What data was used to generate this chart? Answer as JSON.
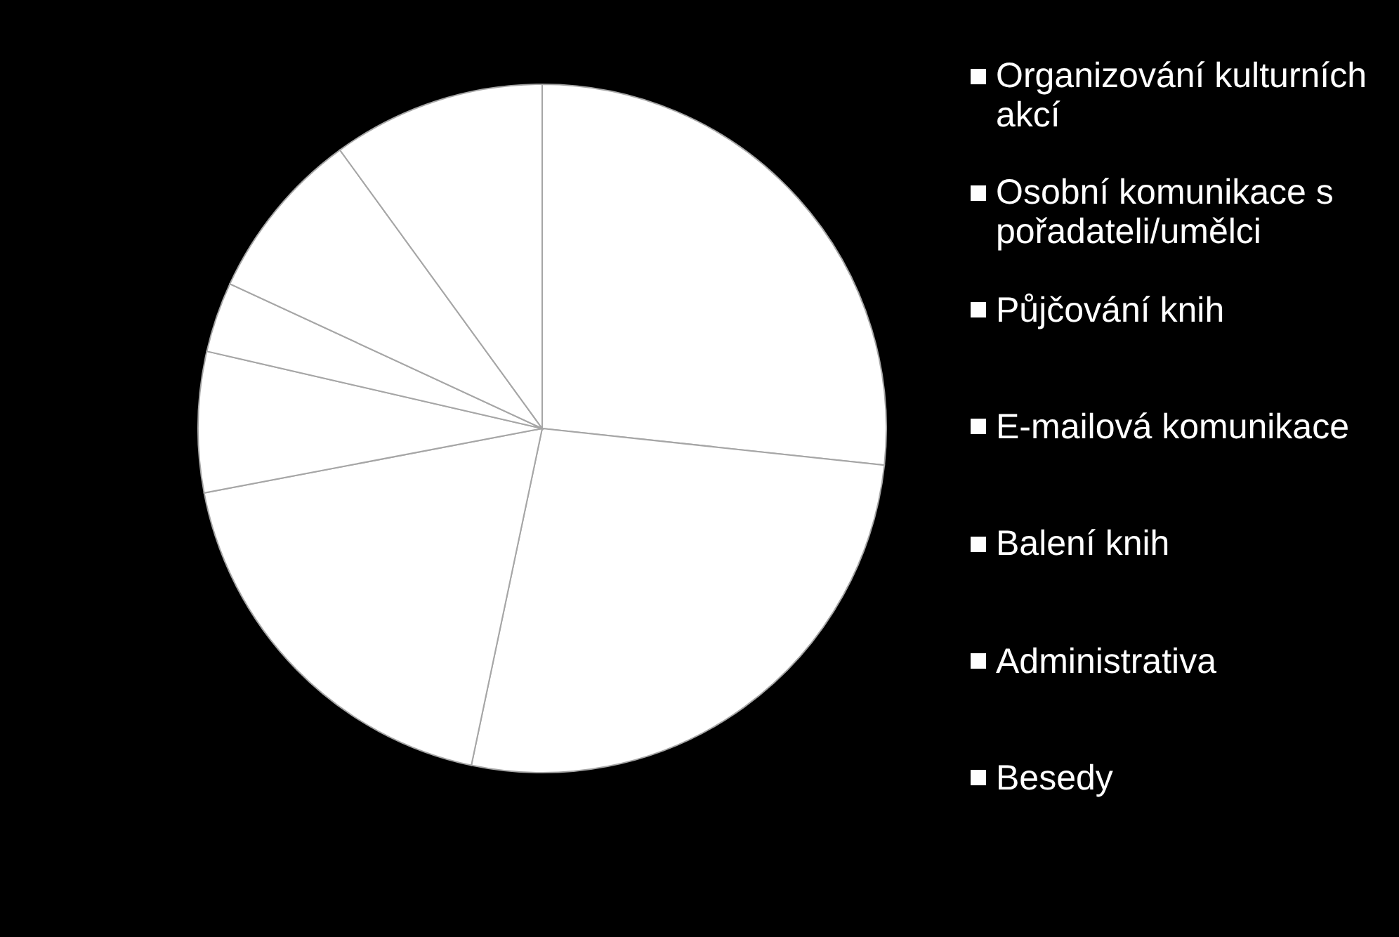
{
  "chart_data": {
    "type": "pie",
    "categories": [
      "Organizování kulturních akcí",
      "Osobní komunikace s pořadateli/umělci",
      "Půjčování knih",
      "E-mailová komunikace",
      "Balení knih",
      "Administrativa",
      "Besedy"
    ],
    "values": [
      26.7,
      26.6,
      18.7,
      6.6,
      3.3,
      8.1,
      10.0
    ],
    "colors": [
      "#ffffff",
      "#ffffff",
      "#ffffff",
      "#ffffff",
      "#ffffff",
      "#ffffff",
      "#ffffff"
    ],
    "legend": "right"
  }
}
